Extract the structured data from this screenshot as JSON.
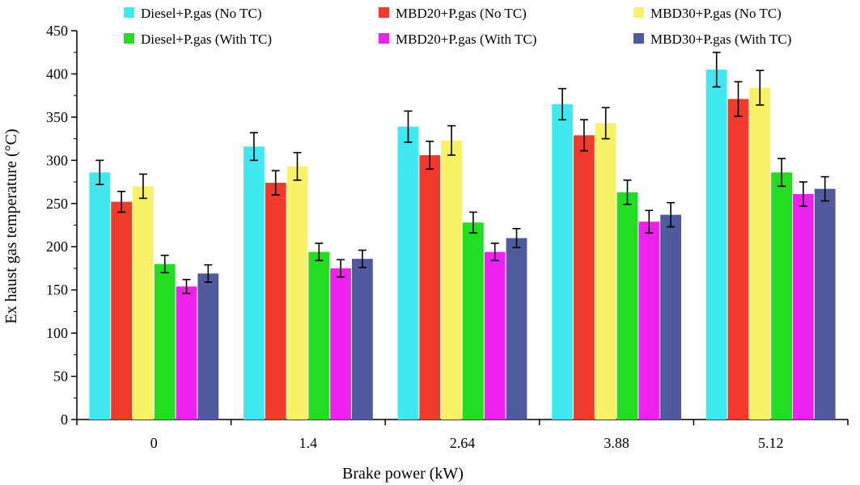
{
  "chart_data": {
    "type": "bar",
    "xlabel": "Brake power (kW)",
    "ylabel": "Ex haust gas temperature (°C)",
    "ylim": [
      0,
      450
    ],
    "yticks": [
      0,
      50,
      100,
      150,
      200,
      250,
      300,
      350,
      400,
      450
    ],
    "categories": [
      "0",
      "1.4",
      "2.64",
      "3.88",
      "5.12"
    ],
    "legend_position": "top",
    "series": [
      {
        "name": "Diesel+P.gas (No TC)",
        "color": "#40e8f0",
        "values": [
          286,
          316,
          339,
          365,
          405
        ],
        "errors": [
          14,
          16,
          18,
          18,
          20
        ]
      },
      {
        "name": "MBD20+P.gas (No TC)",
        "color": "#ef3a2c",
        "values": [
          252,
          274,
          306,
          329,
          371
        ],
        "errors": [
          12,
          14,
          16,
          18,
          20
        ]
      },
      {
        "name": "MBD30+P.gas (No TC)",
        "color": "#f8f266",
        "values": [
          270,
          293,
          323,
          343,
          384
        ],
        "errors": [
          14,
          16,
          17,
          18,
          20
        ]
      },
      {
        "name": "Diesel+P.gas (With TC)",
        "color": "#22dd22",
        "values": [
          180,
          194,
          228,
          263,
          286
        ],
        "errors": [
          10,
          10,
          12,
          14,
          16
        ]
      },
      {
        "name": "MBD20+P.gas (With TC)",
        "color": "#ee22ee",
        "values": [
          154,
          175,
          194,
          229,
          261
        ],
        "errors": [
          8,
          10,
          10,
          13,
          14
        ]
      },
      {
        "name": "MBD30+P.gas (With TC)",
        "color": "#4f5a9f",
        "values": [
          169,
          186,
          210,
          237,
          267
        ],
        "errors": [
          10,
          10,
          11,
          14,
          14
        ]
      }
    ]
  }
}
